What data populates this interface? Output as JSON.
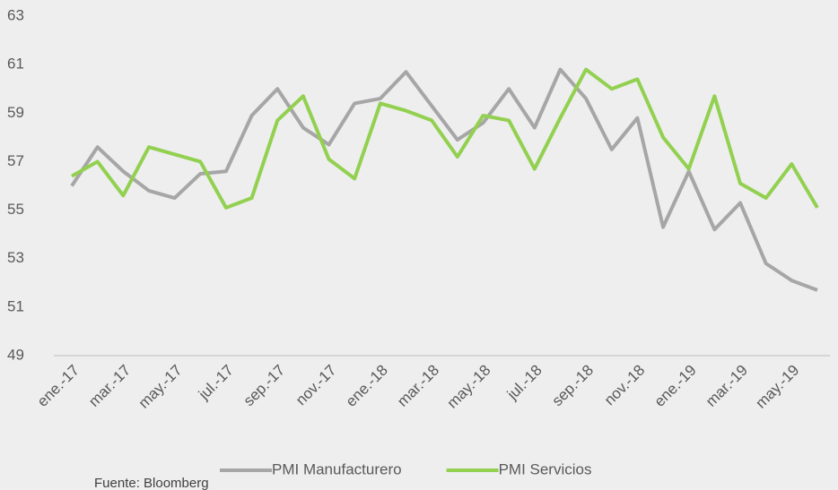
{
  "chart_data": {
    "type": "line",
    "categories": [
      "ene.-17",
      null,
      "mar.-17",
      null,
      "may.-17",
      null,
      "jul.-17",
      null,
      "sep.-17",
      null,
      "nov.-17",
      null,
      "ene.-18",
      null,
      "mar.-18",
      null,
      "may.-18",
      null,
      "jul.-18",
      null,
      "sep.-18",
      null,
      "nov.-18",
      null,
      "ene.-19",
      null,
      "mar.-19",
      null,
      "may.-19",
      null
    ],
    "series": [
      {
        "name": "PMI Manufacturero",
        "color": "#a6a6a6",
        "values": [
          56.0,
          57.6,
          56.6,
          55.8,
          55.5,
          56.5,
          56.6,
          58.9,
          60.0,
          58.4,
          57.7,
          59.4,
          59.6,
          60.7,
          59.3,
          57.9,
          58.6,
          60.0,
          58.4,
          60.8,
          59.6,
          57.5,
          58.8,
          54.3,
          56.6,
          54.2,
          55.3,
          52.8,
          52.1,
          51.7
        ]
      },
      {
        "name": "PMI Servicios",
        "color": "#92d050",
        "values": [
          56.4,
          57.0,
          55.6,
          57.6,
          57.3,
          57.0,
          55.1,
          55.5,
          58.7,
          59.7,
          57.1,
          56.3,
          59.4,
          59.1,
          58.7,
          57.2,
          58.9,
          58.7,
          56.7,
          58.8,
          60.8,
          60.0,
          60.4,
          58.0,
          56.7,
          59.7,
          56.1,
          55.5,
          56.9,
          55.1
        ]
      }
    ],
    "ylim": [
      49,
      63
    ],
    "yticks": [
      49,
      51,
      53,
      55,
      57,
      59,
      61,
      63
    ],
    "legend": "bottom",
    "grid": false,
    "source": "Fuente: Bloomberg"
  }
}
